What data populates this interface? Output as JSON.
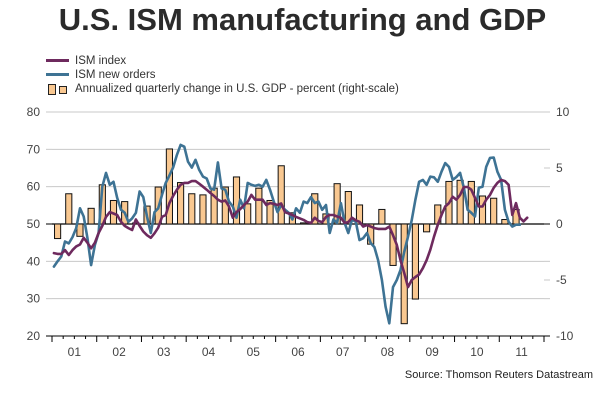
{
  "chart_data": {
    "type": "bar+line",
    "title": "U.S. ISM manufacturing and GDP",
    "source": "Source: Thomson Reuters Datastream",
    "legend_position": "top-left",
    "grid": true,
    "left_axis": {
      "ylim": [
        20,
        80
      ],
      "ticks": [
        20,
        30,
        40,
        50,
        60,
        70,
        80
      ],
      "label": ""
    },
    "right_axis": {
      "ylim": [
        -10,
        10
      ],
      "ticks": [
        -10,
        -5,
        0,
        5,
        10
      ],
      "label": ""
    },
    "x_axis": {
      "start_year": 2001,
      "end_year": 2011,
      "tick_labels": [
        "01",
        "02",
        "03",
        "04",
        "05",
        "06",
        "07",
        "08",
        "09",
        "10",
        "11"
      ]
    },
    "series": [
      {
        "name": "ISM index",
        "type": "line",
        "axis": "left",
        "color": "#6e2a5e",
        "frequency": "monthly",
        "start": "2001-01",
        "values": [
          42.2,
          42.0,
          42.0,
          43.0,
          41.7,
          43.0,
          44.0,
          44.5,
          46.3,
          45.0,
          43.5,
          45.0,
          47.6,
          49.5,
          51.9,
          53.2,
          52.8,
          52.4,
          50.6,
          49.5,
          48.9,
          48.4,
          51.2,
          49.5,
          48.0,
          47.0,
          46.3,
          47.5,
          49.0,
          51.9,
          52.4,
          55.6,
          57.5,
          59.2,
          60.5,
          61.0,
          61.0,
          61.5,
          61.5,
          60.8,
          60.0,
          59.2,
          58.3,
          57.5,
          56.5,
          56.0,
          56.3,
          54.7,
          51.7,
          53.2,
          54.0,
          55.1,
          56.0,
          57.8,
          56.5,
          56.5,
          56.5,
          55.1,
          55.6,
          55.4,
          55.1,
          55.5,
          53.2,
          52.8,
          52.4,
          51.9,
          51.5,
          51.1,
          50.5,
          50.3,
          51.7,
          50.8,
          50.5,
          51.9,
          52.4,
          52.4,
          52.0,
          51.7,
          50.3,
          50.5,
          51.7,
          51.0,
          50.6,
          49.3,
          49.7,
          49.3,
          48.9,
          48.7,
          48.7,
          48.7,
          49.3,
          47.0,
          44.4,
          40.3,
          36.9,
          33.1,
          35.0,
          35.8,
          36.5,
          38.2,
          40.3,
          43.1,
          46.6,
          49.8,
          52.4,
          54.7,
          55.6,
          57.3,
          56.5,
          57.8,
          59.9,
          59.9,
          59.2,
          57.0,
          54.7,
          54.7,
          56.5,
          57.8,
          59.7,
          61.0,
          61.8,
          61.5,
          60.5,
          52.4,
          55.6,
          51.7,
          50.7,
          51.7
        ]
      },
      {
        "name": "ISM new orders",
        "type": "line",
        "axis": "left",
        "color": "#3e7394",
        "frequency": "monthly",
        "start": "2001-01",
        "values": [
          38.6,
          40.0,
          41.3,
          45.3,
          44.8,
          46.5,
          48.9,
          54.2,
          52.0,
          46.3,
          39.0,
          44.4,
          47.6,
          60.0,
          63.7,
          60.5,
          61.3,
          57.0,
          53.8,
          53.0,
          50.6,
          51.5,
          53.0,
          58.7,
          57.2,
          52.0,
          47.6,
          53.2,
          54.2,
          57.8,
          61.0,
          63.0,
          65.1,
          68.5,
          71.2,
          70.7,
          66.7,
          65.1,
          67.2,
          64.5,
          62.7,
          62.2,
          59.5,
          59.2,
          66.5,
          59.5,
          59.2,
          56.0,
          54.7,
          51.7,
          56.5,
          54.2,
          61.0,
          60.5,
          60.2,
          60.5,
          60.0,
          61.8,
          59.2,
          56.0,
          53.2,
          55.1,
          53.8,
          53.0,
          51.2,
          54.2,
          53.0,
          56.0,
          55.6,
          57.2,
          55.6,
          56.0,
          53.8,
          55.1,
          47.6,
          51.2,
          50.3,
          55.6,
          50.3,
          47.6,
          51.2,
          50.6,
          45.7,
          46.2,
          47.6,
          44.9,
          43.8,
          40.3,
          35.0,
          27.8,
          23.4,
          33.1,
          35.0,
          37.7,
          42.5,
          46.6,
          51.0,
          56.5,
          61.3,
          61.8,
          60.5,
          62.7,
          62.5,
          61.3,
          64.0,
          66.3,
          65.3,
          61.8,
          62.6,
          63.7,
          59.7,
          53.8,
          53.0,
          52.0,
          59.7,
          60.0,
          65.3,
          67.7,
          67.8,
          64.0,
          61.8,
          53.8,
          50.6,
          49.3,
          49.8,
          49.8
        ]
      },
      {
        "name": "Annualized quarterly change in U.S. GDP - percent (right-scale)",
        "type": "bar",
        "axis": "right",
        "color": "#f9c891",
        "frequency": "quarterly",
        "start": "2001-Q1",
        "values": [
          -1.3,
          2.7,
          -1.1,
          1.4,
          3.5,
          2.1,
          2.0,
          0.1,
          1.6,
          3.3,
          6.7,
          3.7,
          2.7,
          2.6,
          3.2,
          3.3,
          4.2,
          1.8,
          3.2,
          2.1,
          5.2,
          1.0,
          0.1,
          2.7,
          0.9,
          3.6,
          2.9,
          1.7,
          -1.8,
          1.3,
          -3.7,
          -8.9,
          -6.7,
          -0.7,
          1.7,
          3.8,
          3.9,
          3.8,
          2.5,
          2.3,
          0.4,
          1.3
        ]
      }
    ]
  }
}
